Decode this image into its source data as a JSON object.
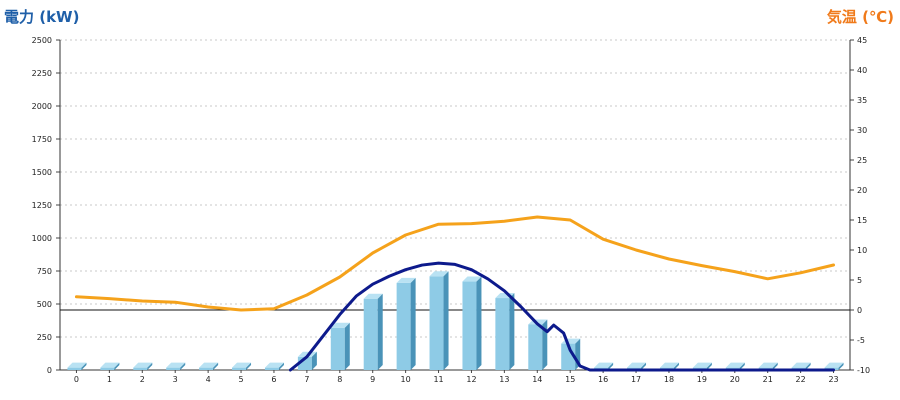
{
  "chart_data": {
    "type": "bar",
    "left_axis_title": "電力 (kW)",
    "right_axis_title": "気温 (℃)",
    "categories": [
      "0",
      "1",
      "2",
      "3",
      "4",
      "5",
      "6",
      "7",
      "8",
      "9",
      "10",
      "11",
      "12",
      "13",
      "14",
      "15",
      "16",
      "17",
      "18",
      "19",
      "20",
      "21",
      "22",
      "23"
    ],
    "y_left_ticks": [
      "0",
      "250",
      "500",
      "750",
      "1000",
      "1250",
      "1500",
      "1750",
      "2000",
      "2250",
      "2500"
    ],
    "y_right_ticks": [
      "-10",
      "-5",
      "0",
      "5",
      "10",
      "15",
      "20",
      "25",
      "30",
      "35",
      "40",
      "45"
    ],
    "ylim_left": [
      0,
      2500
    ],
    "ylim_right": [
      -10,
      45
    ],
    "grid": true,
    "bars": {
      "color": "#8ecbe6",
      "values": [
        18,
        18,
        18,
        18,
        18,
        18,
        18,
        100,
        320,
        540,
        660,
        710,
        670,
        545,
        345,
        200,
        18,
        18,
        18,
        18,
        18,
        18,
        18,
        18
      ]
    },
    "series": [
      {
        "color": "#f5a21b",
        "axis": "right",
        "x": [
          0,
          1,
          2,
          3,
          4,
          5,
          6,
          7,
          8,
          9,
          10,
          11,
          12,
          13,
          14,
          15,
          16,
          17,
          18,
          19,
          20,
          21,
          22,
          23
        ],
        "values": [
          2.2,
          1.9,
          1.5,
          1.3,
          0.5,
          0.0,
          0.2,
          2.5,
          5.5,
          9.5,
          12.5,
          14.3,
          14.4,
          14.8,
          15.5,
          15.0,
          11.8,
          10.0,
          8.5,
          7.4,
          6.4,
          5.2,
          6.2,
          7.5
        ]
      },
      {
        "color": "#0d1a8c",
        "axis": "left",
        "x": [
          6.5,
          7,
          7.5,
          8,
          8.5,
          9,
          9.5,
          10,
          10.5,
          11,
          11.5,
          12,
          12.5,
          13,
          13.5,
          14,
          14.3,
          14.5,
          14.8,
          15,
          15.3,
          15.6,
          16,
          23
        ],
        "values": [
          0,
          100,
          260,
          420,
          560,
          650,
          710,
          760,
          795,
          810,
          800,
          760,
          690,
          600,
          480,
          350,
          290,
          340,
          280,
          150,
          30,
          0,
          0,
          0
        ]
      }
    ],
    "reference_line": {
      "axis": "right",
      "value": 0
    }
  }
}
